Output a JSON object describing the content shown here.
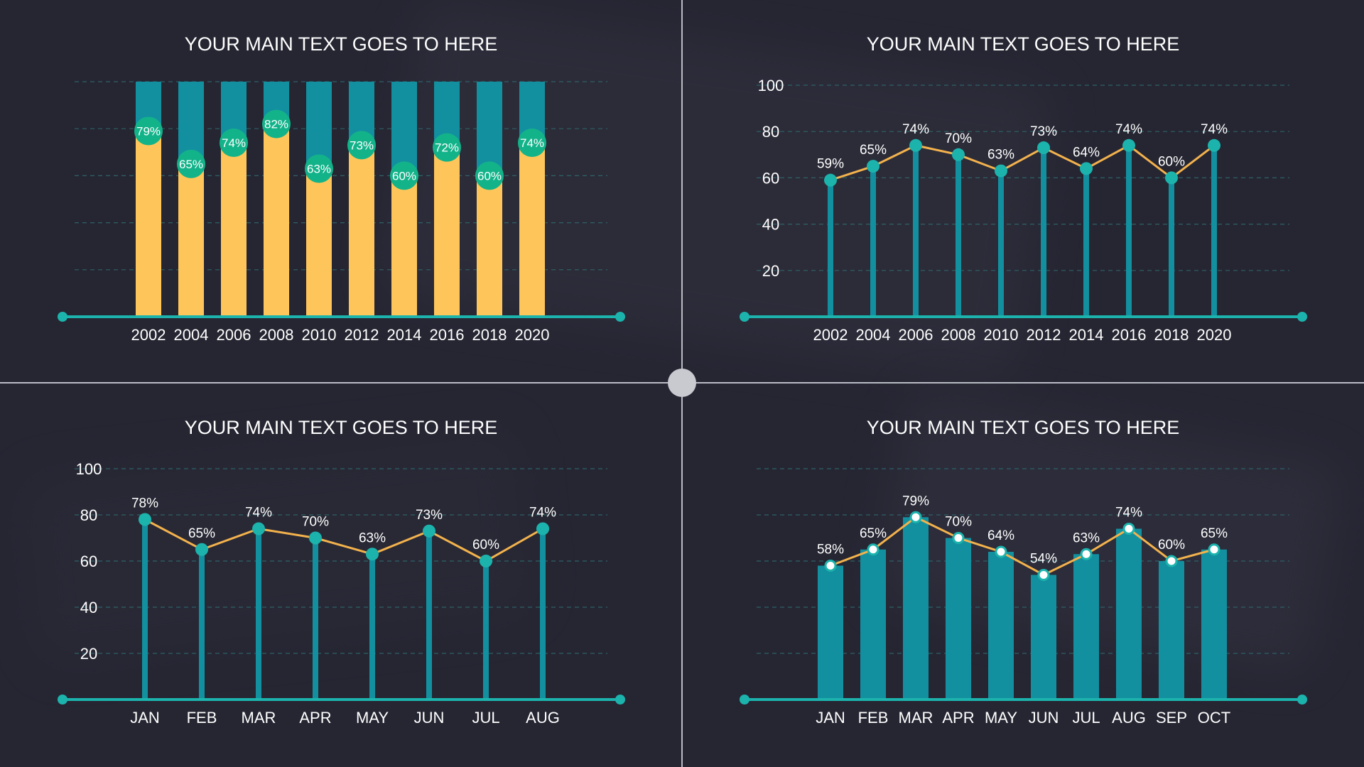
{
  "colors": {
    "background": "#262633",
    "teal": "#13909f",
    "teal_line": "#1cb3ad",
    "green_dot": "#13b38a",
    "yellow": "#fec65a",
    "orange_line": "#f3b24c",
    "grid": "#2f6f73",
    "text": "#ffffff",
    "divider": "#b9bcc4"
  },
  "chart_data": [
    {
      "type": "bar",
      "title": "YOUR MAIN TEXT GOES TO HERE",
      "categories": [
        "2002",
        "2004",
        "2006",
        "2008",
        "2010",
        "2012",
        "2014",
        "2016",
        "2018",
        "2020"
      ],
      "values": [
        79,
        65,
        74,
        82,
        63,
        73,
        60,
        72,
        60,
        74
      ],
      "labels": [
        "79%",
        "65%",
        "74%",
        "82%",
        "63%",
        "73%",
        "60%",
        "72%",
        "60%",
        "74%"
      ],
      "ylim": [
        0,
        100
      ],
      "grid": true,
      "stacked_remainder_to": 100
    },
    {
      "type": "line",
      "title": "YOUR MAIN TEXT GOES TO HERE",
      "categories": [
        "2002",
        "2004",
        "2006",
        "2008",
        "2010",
        "2012",
        "2014",
        "2016",
        "2018",
        "2020"
      ],
      "values": [
        59,
        65,
        74,
        70,
        63,
        73,
        64,
        74,
        60,
        74
      ],
      "labels": [
        "59%",
        "65%",
        "74%",
        "70%",
        "63%",
        "73%",
        "64%",
        "74%",
        "60%",
        "74%"
      ],
      "yticks": [
        "100",
        "80",
        "60",
        "40",
        "20"
      ],
      "ylim": [
        0,
        100
      ],
      "grid": true
    },
    {
      "type": "line",
      "title": "YOUR MAIN TEXT GOES TO HERE",
      "categories": [
        "JAN",
        "FEB",
        "MAR",
        "APR",
        "MAY",
        "JUN",
        "JUL",
        "AUG"
      ],
      "values": [
        78,
        65,
        74,
        70,
        63,
        73,
        60,
        74
      ],
      "labels": [
        "78%",
        "65%",
        "74%",
        "70%",
        "63%",
        "73%",
        "60%",
        "74%"
      ],
      "yticks": [
        "100",
        "80",
        "60",
        "40",
        "20"
      ],
      "ylim": [
        0,
        100
      ],
      "grid": true
    },
    {
      "type": "bar",
      "title": "YOUR MAIN TEXT GOES TO HERE",
      "categories": [
        "JAN",
        "FEB",
        "MAR",
        "APR",
        "MAY",
        "JUN",
        "JUL",
        "AUG",
        "SEP",
        "OCT"
      ],
      "values": [
        58,
        65,
        79,
        70,
        64,
        54,
        63,
        74,
        60,
        65
      ],
      "labels": [
        "58%",
        "65%",
        "79%",
        "70%",
        "64%",
        "54%",
        "63%",
        "74%",
        "60%",
        "65%"
      ],
      "ylim": [
        0,
        100
      ],
      "grid": true,
      "line_overlay": true
    }
  ]
}
